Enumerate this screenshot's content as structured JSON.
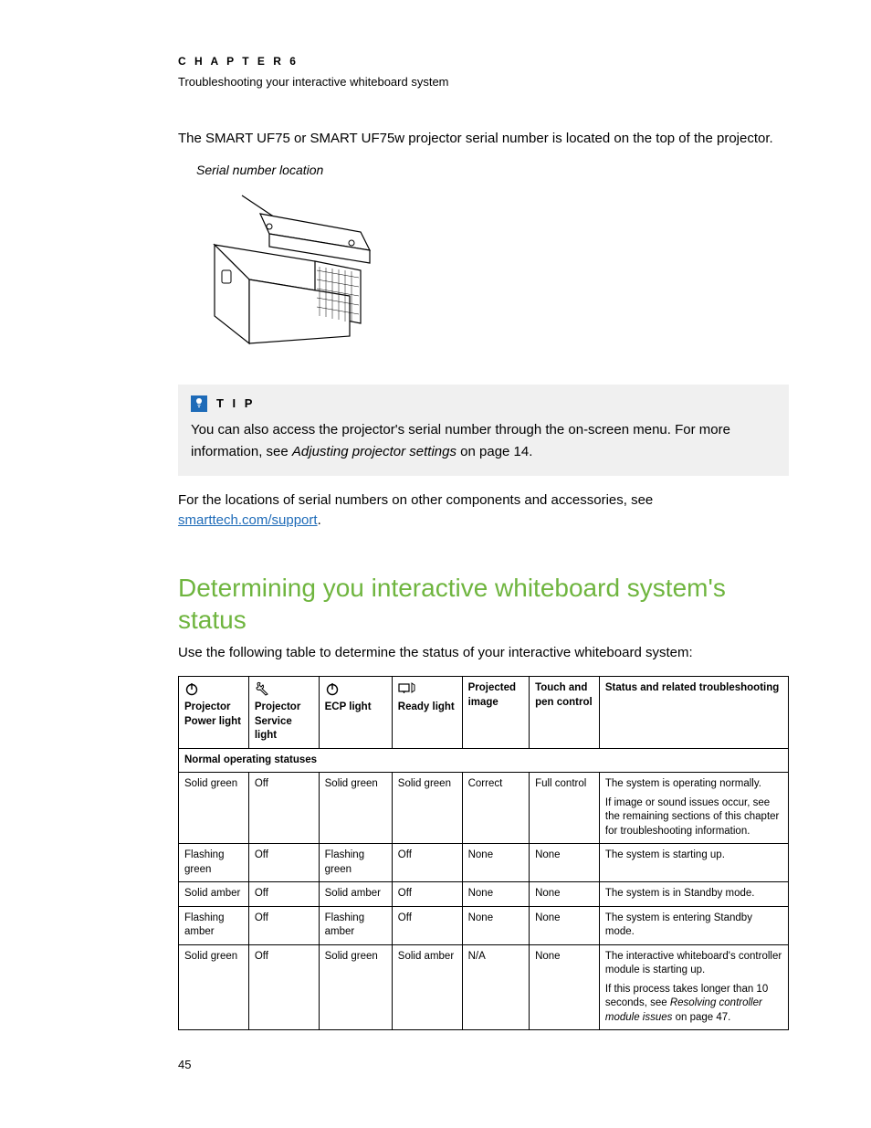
{
  "header": {
    "chapter_label": "C H A P T E R   6",
    "chapter_subtitle": "Troubleshooting your interactive whiteboard system"
  },
  "intro_text": "The SMART UF75 or SMART UF75w projector serial number is located on the top of the projector.",
  "diagram": {
    "label": "Serial number location"
  },
  "tip": {
    "label": "T I P",
    "text_before_italic": "You can also access the projector's serial number through the on-screen menu. For more information, see ",
    "italic_text": "Adjusting projector settings",
    "text_after_italic": " on page 14.",
    "icon_bg": "#1e6bb8"
  },
  "locations_text": {
    "before_link": "For the locations of serial numbers on other components and accessories, see ",
    "link_text": "smarttech.com/support",
    "after_link": "."
  },
  "section": {
    "heading": "Determining you interactive whiteboard system's status",
    "intro": "Use the following table to determine the status of your interactive whiteboard system:"
  },
  "table": {
    "headers": {
      "col1": "Projector Power light",
      "col2": "Projector Service light",
      "col3": "ECP light",
      "col4": "Ready light",
      "col5": "Projected image",
      "col6": "Touch and pen control",
      "col7": "Status and related troubleshooting"
    },
    "section_label": "Normal operating statuses",
    "rows": [
      {
        "c1": "Solid green",
        "c2": "Off",
        "c3": "Solid green",
        "c4": "Solid green",
        "c5": "Correct",
        "c6": "Full control",
        "c7": [
          {
            "plain": "The system is operating normally."
          },
          {
            "plain": "If image or sound issues occur, see the remaining sections of this chapter for troubleshooting information."
          }
        ]
      },
      {
        "c1": "Flashing green",
        "c2": "Off",
        "c3": "Flashing green",
        "c4": "Off",
        "c5": "None",
        "c6": "None",
        "c7": [
          {
            "plain": "The system is starting up."
          }
        ]
      },
      {
        "c1": "Solid amber",
        "c2": "Off",
        "c3": "Solid amber",
        "c4": "Off",
        "c5": "None",
        "c6": "None",
        "c7": [
          {
            "plain": "The system is in Standby mode."
          }
        ]
      },
      {
        "c1": "Flashing amber",
        "c2": "Off",
        "c3": "Flashing amber",
        "c4": "Off",
        "c5": "None",
        "c6": "None",
        "c7": [
          {
            "plain": "The system is entering Standby mode."
          }
        ]
      },
      {
        "c1": "Solid green",
        "c2": "Off",
        "c3": "Solid green",
        "c4": "Solid amber",
        "c5": "N/A",
        "c6": "None",
        "c7": [
          {
            "plain": "The interactive whiteboard's controller module is starting up."
          },
          {
            "plain_before": "If this process takes longer than 10 seconds, see ",
            "italic": "Resolving controller module issues",
            "plain_after": " on page 47."
          }
        ]
      }
    ]
  },
  "page_number": "45",
  "colors": {
    "heading_green": "#6fb53f",
    "link_blue": "#1e6bb8",
    "tip_bg": "#f0f0f0",
    "text": "#000000",
    "page_bg": "#ffffff",
    "border": "#000000"
  }
}
